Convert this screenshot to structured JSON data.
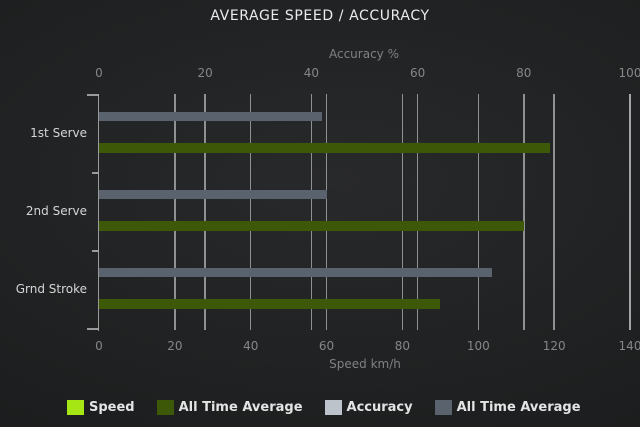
{
  "chart_data": {
    "type": "bar",
    "orientation": "horizontal",
    "title": "AVERAGE SPEED / ACCURACY",
    "grid": true,
    "legend_position": "bottom",
    "categories": [
      "1st Serve",
      "2nd Serve",
      "Grnd Stroke"
    ],
    "axes": {
      "top": {
        "label": "Accuracy %",
        "min": 0,
        "max": 100,
        "ticks": [
          0,
          20,
          40,
          60,
          80,
          100
        ]
      },
      "bottom": {
        "label": "Speed km/h",
        "min": 0,
        "max": 140,
        "ticks": [
          0,
          20,
          40,
          60,
          80,
          100,
          120,
          140
        ]
      }
    },
    "series": [
      {
        "name": "Speed",
        "axis": "bottom",
        "color": "#a6e614",
        "unit": "km/h",
        "values": [
          null,
          null,
          null
        ]
      },
      {
        "name": "All Time Average",
        "axis": "bottom",
        "color": "#3d5806",
        "unit": "km/h",
        "values": [
          119,
          112,
          90
        ]
      },
      {
        "name": "Accuracy",
        "axis": "top",
        "color": "#bcc3cb",
        "unit": "%",
        "values": [
          null,
          null,
          null
        ]
      },
      {
        "name": "All Time Average",
        "axis": "top",
        "color": "#59626d",
        "unit": "%",
        "values": [
          42,
          43,
          74
        ]
      }
    ],
    "colors": {
      "background_center": "#28292b",
      "background_edge": "#161718",
      "gridline": "#a6a9a9",
      "title_text": "#eaebeb",
      "axis_text": "#7f8182",
      "category_text": "#d5d6d6",
      "legend_text": "#e3e4e4"
    }
  }
}
